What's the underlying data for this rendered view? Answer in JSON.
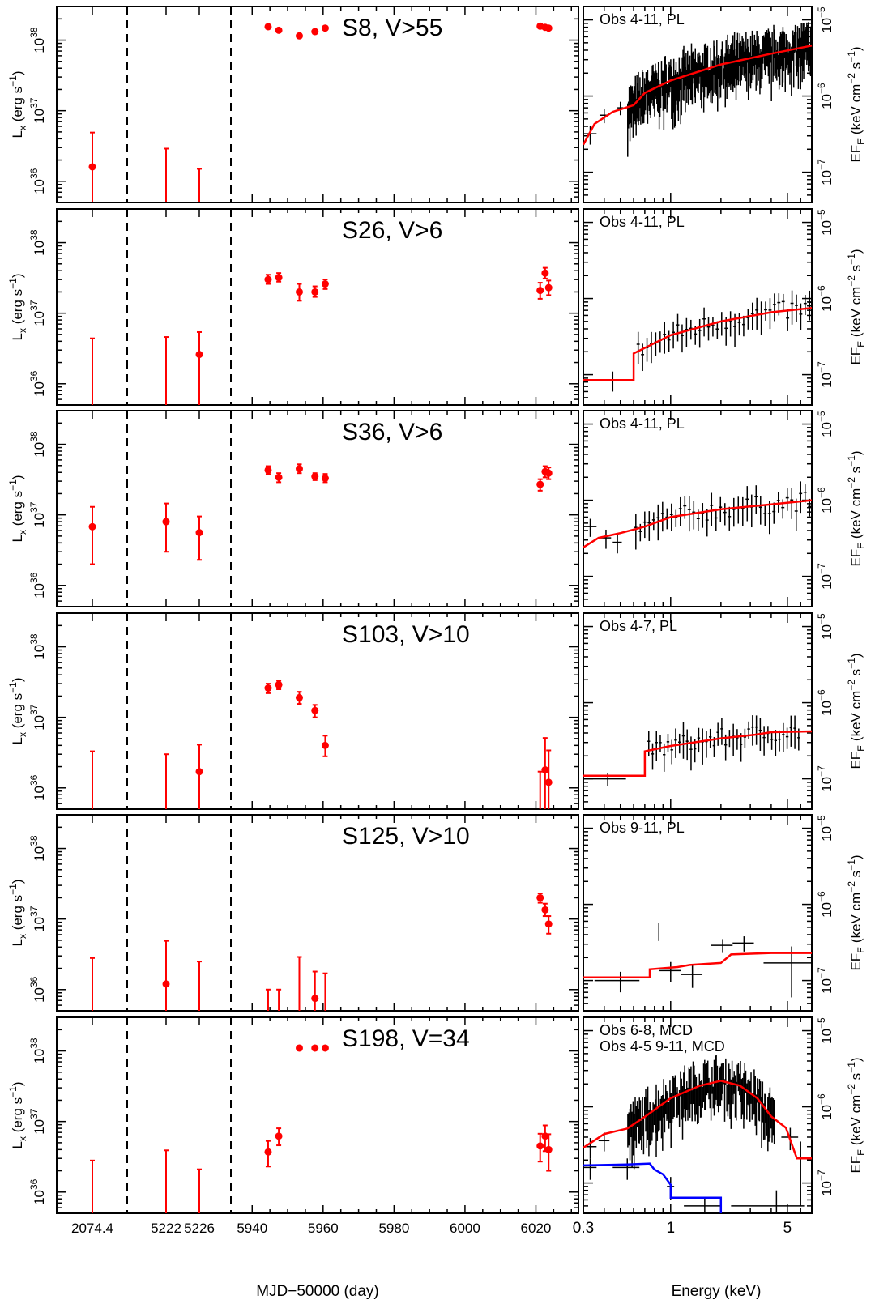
{
  "figure": {
    "left_xlabel": "MJD−50000 (day)",
    "right_xlabel": "Energy (keV)",
    "left_ylabel": "L",
    "left_ylabel_sub": "x",
    "left_ylabel_unit": "(erg s",
    "left_ylabel_unit_exp": "−1",
    "left_ylabel_close": ")",
    "right_ylabel": "EF",
    "right_ylabel_sub": "E",
    "right_ylabel_unit": "(keV cm",
    "right_ylabel_unit_exp1": "−2",
    "right_ylabel_unit_mid": "s",
    "right_ylabel_unit_exp2": "−1",
    "right_ylabel_close": ")"
  },
  "colors": {
    "data": "#ff0000",
    "spectrum": "#000000",
    "model": "#ff0000",
    "model2": "#0000ff"
  },
  "chart_data": {
    "type": "scatter",
    "x_tick_labels": [
      "2074.4",
      "5222",
      "5226",
      "5940",
      "5960",
      "5980",
      "6000",
      "6020"
    ],
    "y_tick_labels": [
      {
        "base": "10",
        "exp": "36"
      },
      {
        "base": "10",
        "exp": "37"
      },
      {
        "base": "10",
        "exp": "38"
      }
    ],
    "energy_ticks": [
      "0.3",
      "1",
      "5"
    ],
    "flux_ticks": [
      {
        "base": "10",
        "exp": "−7"
      },
      {
        "base": "10",
        "exp": "−6"
      },
      {
        "base": "10",
        "exp": "−5"
      }
    ],
    "ylim": [
      5e+35,
      3e+38
    ],
    "xlim_days": [
      5934,
      6032
    ],
    "energy_lim": [
      0.3,
      7.0
    ],
    "flux_lim": [
      4e-08,
      1.5e-05
    ],
    "early_x": [
      2074.4,
      5222.0,
      5226.0
    ],
    "late_x": [
      5944.5,
      5947.5,
      5953.3,
      5957.7,
      5960.6,
      6021.2,
      6022.6,
      6023.6
    ],
    "panels": [
      {
        "name": "S8, V>55",
        "spec_label": "Obs 4-11, PL",
        "points": [
          {
            "x": 5944.5,
            "y": 1.55e+38,
            "lo": 1.47e+38,
            "hi": 1.63e+38
          },
          {
            "x": 5947.5,
            "y": 1.38e+38,
            "lo": 1.3e+38,
            "hi": 1.46e+38
          },
          {
            "x": 5953.3,
            "y": 1.15e+38,
            "lo": 1.08e+38,
            "hi": 1.23e+38
          },
          {
            "x": 5957.7,
            "y": 1.32e+38,
            "lo": 1.25e+38,
            "hi": 1.4e+38
          },
          {
            "x": 5960.6,
            "y": 1.48e+38,
            "lo": 1.4e+38,
            "hi": 1.56e+38
          },
          {
            "x": 6021.2,
            "y": 1.58e+38,
            "lo": 1.5e+38,
            "hi": 1.66e+38
          },
          {
            "x": 6022.6,
            "y": 1.52e+38,
            "lo": 1.44e+38,
            "hi": 1.6e+38
          },
          {
            "x": 6023.6,
            "y": 1.48e+38,
            "lo": 1.4e+38,
            "hi": 1.56e+38
          }
        ],
        "limits": [
          {
            "x": 2074.4,
            "y": 1.6e+36,
            "lo": 5e+35,
            "hi": 4.9e+36
          },
          {
            "x": 5222.0,
            "y": null,
            "lo": 5e+35,
            "hi": 2.9e+36
          },
          {
            "x": 5226.0,
            "y": null,
            "lo": 5e+35,
            "hi": 1.5e+36
          }
        ],
        "model": [
          {
            "e": 0.3,
            "f": 2.3e-07
          },
          {
            "e": 0.35,
            "f": 4.3e-07
          },
          {
            "e": 0.45,
            "f": 6.2e-07
          },
          {
            "e": 0.6,
            "f": 7.6e-07
          },
          {
            "e": 0.7,
            "f": 1.1e-06
          },
          {
            "e": 1.0,
            "f": 1.6e-06
          },
          {
            "e": 2.0,
            "f": 2.6e-06
          },
          {
            "e": 4.0,
            "f": 3.6e-06
          },
          {
            "e": 7.0,
            "f": 4.6e-06
          }
        ],
        "model2": [],
        "spec_step": [
          {
            "e": 0.33,
            "f": 3.2e-07,
            "ferr": 9e-08,
            "dx": 0.03
          },
          {
            "e": 0.4,
            "f": 5.6e-07,
            "ferr": 1.2e-07,
            "dx": 0.025
          },
          {
            "e": 0.5,
            "f": 7e-07,
            "ferr": 1.4e-07,
            "dx": 0.02
          }
        ],
        "spec_region": {
          "e0": 0.55,
          "e1": 7.0,
          "fscale": 1.0,
          "dense": true
        }
      },
      {
        "name": "S26, V>6",
        "spec_label": "Obs 4-11, PL",
        "points": [
          {
            "x": 5944.5,
            "y": 3e+37,
            "lo": 2.6e+37,
            "hi": 3.5e+37
          },
          {
            "x": 5947.5,
            "y": 3.2e+37,
            "lo": 2.8e+37,
            "hi": 3.7e+37
          },
          {
            "x": 5953.3,
            "y": 2e+37,
            "lo": 1.5e+37,
            "hi": 2.6e+37
          },
          {
            "x": 5957.7,
            "y": 2e+37,
            "lo": 1.7e+37,
            "hi": 2.4e+37
          },
          {
            "x": 5960.6,
            "y": 2.6e+37,
            "lo": 2.2e+37,
            "hi": 3e+37
          },
          {
            "x": 6021.2,
            "y": 2.1e+37,
            "lo": 1.6e+37,
            "hi": 2.7e+37
          },
          {
            "x": 6022.6,
            "y": 3.7e+37,
            "lo": 3.1e+37,
            "hi": 4.4e+37
          },
          {
            "x": 6023.6,
            "y": 2.3e+37,
            "lo": 1.8e+37,
            "hi": 2.9e+37
          }
        ],
        "limits": [
          {
            "x": 2074.4,
            "y": null,
            "lo": 5e+35,
            "hi": 4.4e+36
          },
          {
            "x": 5222.0,
            "y": null,
            "lo": 5e+35,
            "hi": 4.6e+36
          },
          {
            "x": 5226.0,
            "y": 2.6e+36,
            "lo": 5e+35,
            "hi": 5.4e+36
          }
        ],
        "model": [
          {
            "e": 0.3,
            "f": 8.5e-08
          },
          {
            "e": 0.6,
            "f": 8.5e-08
          },
          {
            "e": 0.6,
            "f": 1.9e-07
          },
          {
            "e": 1.0,
            "f": 3.3e-07
          },
          {
            "e": 2.0,
            "f": 5e-07
          },
          {
            "e": 4.0,
            "f": 6.6e-07
          },
          {
            "e": 7.0,
            "f": 7.5e-07
          }
        ],
        "model2": [],
        "spec_step": [
          {
            "e": 0.45,
            "f": 8.5e-08,
            "ferr": 2.5e-08,
            "dx": 0.15
          }
        ],
        "spec_region": {
          "e0": 0.62,
          "e1": 7.0,
          "fscale": 0.17,
          "dense": false
        }
      },
      {
        "name": "S36, V>6",
        "spec_label": "Obs 4-11, PL",
        "points": [
          {
            "x": 5944.5,
            "y": 4.3e+37,
            "lo": 3.8e+37,
            "hi": 4.9e+37
          },
          {
            "x": 5947.5,
            "y": 3.4e+37,
            "lo": 2.9e+37,
            "hi": 3.9e+37
          },
          {
            "x": 5953.3,
            "y": 4.5e+37,
            "lo": 3.9e+37,
            "hi": 5.2e+37
          },
          {
            "x": 5957.7,
            "y": 3.5e+37,
            "lo": 3.1e+37,
            "hi": 3.9e+37
          },
          {
            "x": 5960.6,
            "y": 3.3e+37,
            "lo": 2.9e+37,
            "hi": 3.8e+37
          },
          {
            "x": 6021.2,
            "y": 2.7e+37,
            "lo": 2.2e+37,
            "hi": 3.2e+37
          },
          {
            "x": 6022.6,
            "y": 4.1e+37,
            "lo": 3.4e+37,
            "hi": 4.9e+37
          },
          {
            "x": 6023.6,
            "y": 3.9e+37,
            "lo": 3.2e+37,
            "hi": 4.7e+37
          }
        ],
        "limits": [
          {
            "x": 2074.4,
            "y": 6.8e+36,
            "lo": 2e+36,
            "hi": 1.3e+37
          },
          {
            "x": 5222.0,
            "y": 8e+36,
            "lo": 3e+36,
            "hi": 1.45e+37
          },
          {
            "x": 5226.0,
            "y": 5.6e+36,
            "lo": 2.3e+36,
            "hi": 9.5e+36
          }
        ],
        "model": [
          {
            "e": 0.3,
            "f": 2.4e-07
          },
          {
            "e": 0.37,
            "f": 3.2e-07
          },
          {
            "e": 0.5,
            "f": 3.7e-07
          },
          {
            "e": 0.7,
            "f": 4.5e-07
          },
          {
            "e": 1.0,
            "f": 6e-07
          },
          {
            "e": 2.0,
            "f": 7.6e-07
          },
          {
            "e": 4.0,
            "f": 8.8e-07
          },
          {
            "e": 7.0,
            "f": 1e-06
          }
        ],
        "model2": [],
        "spec_step": [
          {
            "e": 0.33,
            "f": 4.5e-07,
            "ferr": 1.2e-07,
            "dx": 0.03
          },
          {
            "e": 0.41,
            "f": 3.2e-07,
            "ferr": 9e-08,
            "dx": 0.03
          },
          {
            "e": 0.48,
            "f": 2.8e-07,
            "ferr": 8e-08,
            "dx": 0.03
          }
        ],
        "spec_region": {
          "e0": 0.6,
          "e1": 7.0,
          "fscale": 0.24,
          "dense": false
        }
      },
      {
        "name": "S103, V>10",
        "spec_label": "Obs 4-7, PL",
        "points": [
          {
            "x": 5944.5,
            "y": 2.6e+37,
            "lo": 2.2e+37,
            "hi": 3e+37
          },
          {
            "x": 5947.5,
            "y": 2.9e+37,
            "lo": 2.5e+37,
            "hi": 3.3e+37
          },
          {
            "x": 5953.3,
            "y": 1.9e+37,
            "lo": 1.55e+37,
            "hi": 2.3e+37
          },
          {
            "x": 5957.7,
            "y": 1.25e+37,
            "lo": 1e+37,
            "hi": 1.5e+37
          },
          {
            "x": 5960.6,
            "y": 4e+36,
            "lo": 2.8e+36,
            "hi": 5.5e+36
          }
        ],
        "limits": [
          {
            "x": 2074.4,
            "y": null,
            "lo": 5e+35,
            "hi": 3.3e+36
          },
          {
            "x": 5222.0,
            "y": null,
            "lo": 5e+35,
            "hi": 3e+36
          },
          {
            "x": 5226.0,
            "y": 1.7e+36,
            "lo": 5e+35,
            "hi": 4.1e+36
          },
          {
            "x": 6021.2,
            "y": null,
            "lo": 5e+35,
            "hi": 1.7e+36
          },
          {
            "x": 6022.6,
            "y": 1.8e+36,
            "lo": 5e+35,
            "hi": 5.1e+36
          },
          {
            "x": 6023.6,
            "y": 1.2e+36,
            "lo": 5e+35,
            "hi": 3.4e+36
          }
        ],
        "model": [
          {
            "e": 0.3,
            "f": 1.1e-07
          },
          {
            "e": 0.7,
            "f": 1.1e-07
          },
          {
            "e": 0.7,
            "f": 2.3e-07
          },
          {
            "e": 1.0,
            "f": 2.7e-07
          },
          {
            "e": 2.0,
            "f": 3.4e-07
          },
          {
            "e": 3.2,
            "f": 3.8e-07
          },
          {
            "e": 4.0,
            "f": 4.1e-07
          },
          {
            "e": 7.0,
            "f": 4.2e-07
          }
        ],
        "model2": [],
        "spec_step": [
          {
            "e": 0.42,
            "f": 1e-07,
            "ferr": 2e-08,
            "dx": 0.12
          }
        ],
        "spec_region": {
          "e0": 0.72,
          "e1": 6.0,
          "fscale": 0.1,
          "dense": false
        }
      },
      {
        "name": "S125, V>10",
        "spec_label": "Obs 9-11, PL",
        "points": [
          {
            "x": 6021.2,
            "y": 2e+37,
            "lo": 1.7e+37,
            "hi": 2.3e+37
          },
          {
            "x": 6022.6,
            "y": 1.35e+37,
            "lo": 1.1e+37,
            "hi": 1.65e+37
          },
          {
            "x": 6023.6,
            "y": 8.5e+36,
            "lo": 6.2e+36,
            "hi": 1.1e+37
          }
        ],
        "limits": [
          {
            "x": 2074.4,
            "y": null,
            "lo": 5e+35,
            "hi": 2.8e+36
          },
          {
            "x": 5222.0,
            "y": 1.2e+36,
            "lo": 5e+35,
            "hi": 4.9e+36
          },
          {
            "x": 5226.0,
            "y": null,
            "lo": 5e+35,
            "hi": 2.5e+36
          },
          {
            "x": 5944.5,
            "y": null,
            "lo": 5e+35,
            "hi": 1e+36
          },
          {
            "x": 5947.5,
            "y": null,
            "lo": 5e+35,
            "hi": 1e+36
          },
          {
            "x": 5953.3,
            "y": null,
            "lo": 5e+35,
            "hi": 2.9e+36
          },
          {
            "x": 5957.7,
            "y": 7.5e+35,
            "lo": 5e+35,
            "hi": 1.8e+36
          },
          {
            "x": 5960.6,
            "y": null,
            "lo": 5e+35,
            "hi": 1.7e+36
          }
        ],
        "model": [
          {
            "e": 0.3,
            "f": 1.1e-07
          },
          {
            "e": 0.75,
            "f": 1.1e-07
          },
          {
            "e": 0.75,
            "f": 1.4e-07
          },
          {
            "e": 1.1,
            "f": 1.5e-07
          },
          {
            "e": 1.3,
            "f": 1.6e-07
          },
          {
            "e": 2.0,
            "f": 1.7e-07
          },
          {
            "e": 2.3,
            "f": 2.2e-07
          },
          {
            "e": 4.0,
            "f": 2.3e-07
          },
          {
            "e": 7.0,
            "f": 2.3e-07
          }
        ],
        "model2": [],
        "spec_step": [],
        "spec_points": [
          {
            "e": 0.5,
            "f": 1e-07,
            "ferr": 3e-08,
            "dx": 0.15
          },
          {
            "e": 0.85,
            "f": 4.5e-07,
            "ferr": 1.2e-07,
            "dx": 0.0
          },
          {
            "e": 1.0,
            "f": 1.35e-07,
            "ferr": 4e-08,
            "dx": 0.15
          },
          {
            "e": 1.35,
            "f": 1.2e-07,
            "ferr": 4e-08,
            "dx": 0.2
          },
          {
            "e": 2.05,
            "f": 2.9e-07,
            "ferr": 6e-08,
            "dx": 0.3
          },
          {
            "e": 2.75,
            "f": 3.1e-07,
            "ferr": 7e-08,
            "dx": 0.4
          },
          {
            "e": 5.3,
            "f": 1.7e-07,
            "ferr": 1.1e-07,
            "dx": 1.7
          }
        ],
        "spec_region": null
      },
      {
        "name": "S198, V=34",
        "spec_label": "Obs 6-8, MCD",
        "spec_label2": "Obs 4-5 9-11, MCD",
        "points": [
          {
            "x": 5953.3,
            "y": 1.1e+38,
            "lo": 1.02e+38,
            "hi": 1.18e+38
          },
          {
            "x": 5957.7,
            "y": 1.1e+38,
            "lo": 1.04e+38,
            "hi": 1.16e+38
          },
          {
            "x": 5960.6,
            "y": 1.1e+38,
            "lo": 1.04e+38,
            "hi": 1.16e+38
          },
          {
            "x": 5944.5,
            "y": 3.7e+36,
            "lo": 2.3e+36,
            "hi": 5.3e+36
          },
          {
            "x": 5947.5,
            "y": 6.2e+36,
            "lo": 4.6e+36,
            "hi": 8e+36
          },
          {
            "x": 6021.2,
            "y": 4.5e+36,
            "lo": 2.7e+36,
            "hi": 6.7e+36
          },
          {
            "x": 6022.6,
            "y": 6.2e+36,
            "lo": 3.8e+36,
            "hi": 8.8e+36
          },
          {
            "x": 6023.6,
            "y": 4e+36,
            "lo": 2e+36,
            "hi": 6.6e+36
          }
        ],
        "limits": [
          {
            "x": 2074.4,
            "y": null,
            "lo": 5e+35,
            "hi": 2.8e+36
          },
          {
            "x": 5222.0,
            "y": null,
            "lo": 5e+35,
            "hi": 3.9e+36
          },
          {
            "x": 5226.0,
            "y": null,
            "lo": 5e+35,
            "hi": 2.1e+36
          }
        ],
        "model": [
          {
            "e": 0.3,
            "f": 2.9e-07
          },
          {
            "e": 0.4,
            "f": 4.4e-07
          },
          {
            "e": 0.55,
            "f": 5.2e-07
          },
          {
            "e": 0.7,
            "f": 7.4e-07
          },
          {
            "e": 1.0,
            "f": 1.3e-06
          },
          {
            "e": 1.5,
            "f": 1.9e-06
          },
          {
            "e": 2.0,
            "f": 2.2e-06
          },
          {
            "e": 2.6,
            "f": 1.9e-06
          },
          {
            "e": 3.3,
            "f": 1.3e-06
          },
          {
            "e": 4.0,
            "f": 7.5e-07
          },
          {
            "e": 4.9,
            "f": 5.3e-07
          },
          {
            "e": 5.7,
            "f": 2.1e-07
          },
          {
            "e": 7.0,
            "f": 2.1e-07
          }
        ],
        "model2": [
          {
            "e": 0.3,
            "f": 1.7e-07
          },
          {
            "e": 0.55,
            "f": 1.75e-07
          },
          {
            "e": 0.75,
            "f": 1.8e-07
          },
          {
            "e": 0.8,
            "f": 1.5e-07
          },
          {
            "e": 0.9,
            "f": 1.3e-07
          },
          {
            "e": 1.0,
            "f": 9.5e-08
          },
          {
            "e": 1.0,
            "f": 6.4e-08
          },
          {
            "e": 2.0,
            "f": 6.4e-08
          },
          {
            "e": 2.0,
            "f": 4e-08
          }
        ],
        "spec_step": [
          {
            "e": 0.33,
            "f": 3e-07,
            "ferr": 9e-08,
            "dx": 0.03
          },
          {
            "e": 0.4,
            "f": 3.6e-07,
            "ferr": 1e-07,
            "dx": 0.03
          },
          {
            "e": 0.33,
            "f": 1.6e-07,
            "ferr": 5e-08,
            "dx": 0.03
          },
          {
            "e": 0.55,
            "f": 1.6e-07,
            "ferr": 5e-08,
            "dx": 0.1
          },
          {
            "e": 0.82,
            "f": 3.7e-07,
            "ferr": 1.5e-07,
            "dx": 0.0
          },
          {
            "e": 1.0,
            "f": 9e-08,
            "ferr": 3e-08,
            "dx": 0.05
          },
          {
            "e": 1.6,
            "f": 5e-08,
            "ferr": 1.5e-08,
            "dx": 0.4
          },
          {
            "e": 4.3,
            "f": 5e-08,
            "ferr": 3e-08,
            "dx": 2.0
          },
          {
            "e": 5.2,
            "f": 4e-07,
            "ferr": 1.3e-07,
            "dx": 0.6
          },
          {
            "e": 6.0,
            "f": 2e-07,
            "ferr": 1.5e-07,
            "dx": 0.0
          }
        ],
        "spec_region": {
          "e0": 0.55,
          "e1": 4.2,
          "fscale": 1.0,
          "dense": true,
          "mcd": true
        }
      }
    ]
  }
}
